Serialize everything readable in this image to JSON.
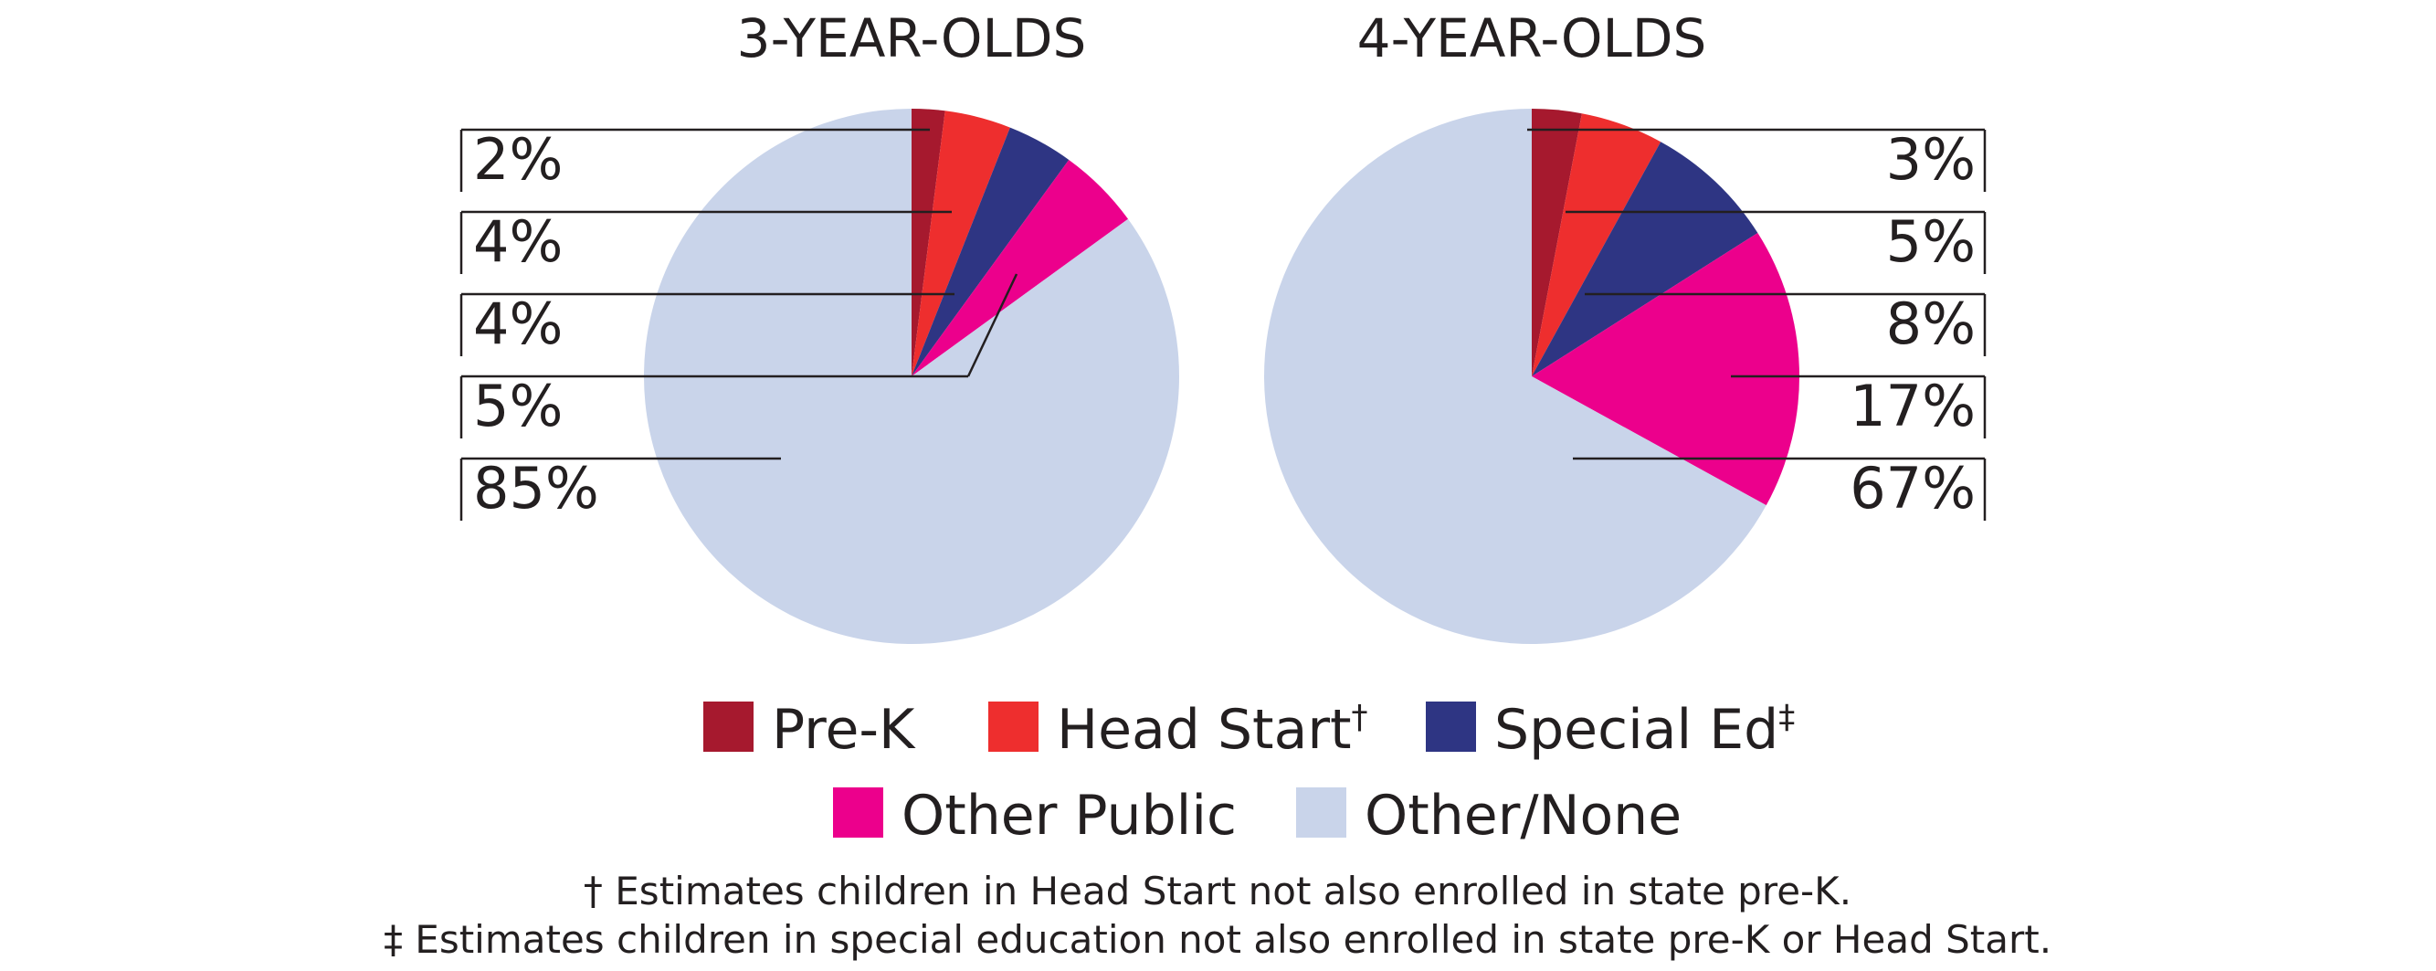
{
  "chart_data": [
    {
      "type": "pie",
      "title": "3-YEAR-OLDS",
      "categories": [
        "Pre-K",
        "Head Start†",
        "Special Ed‡",
        "Other Public",
        "Other/None"
      ],
      "values": [
        2,
        4,
        4,
        5,
        85
      ],
      "labels": [
        "2%",
        "4%",
        "4%",
        "5%",
        "85%"
      ]
    },
    {
      "type": "pie",
      "title": "4-YEAR-OLDS",
      "categories": [
        "Pre-K",
        "Head Start†",
        "Special Ed‡",
        "Other Public",
        "Other/None"
      ],
      "values": [
        3,
        5,
        8,
        17,
        67
      ],
      "labels": [
        "3%",
        "5%",
        "8%",
        "17%",
        "67%"
      ]
    }
  ],
  "legend": [
    {
      "label": "Pre-K",
      "mark": "",
      "color": "#a6192e"
    },
    {
      "label": "Head Start",
      "mark": "†",
      "color": "#ee2e2e"
    },
    {
      "label": "Special Ed",
      "mark": "‡",
      "color": "#2e3583"
    },
    {
      "label": "Other Public",
      "mark": "",
      "color": "#ec008c"
    },
    {
      "label": "Other/None",
      "mark": "",
      "color": "#c9d4ea"
    }
  ],
  "footnotes": [
    "† Estimates children in Head Start not also enrolled in state pre-K.",
    "‡ Estimates children in special education not also enrolled in state pre-K or Head Start."
  ]
}
